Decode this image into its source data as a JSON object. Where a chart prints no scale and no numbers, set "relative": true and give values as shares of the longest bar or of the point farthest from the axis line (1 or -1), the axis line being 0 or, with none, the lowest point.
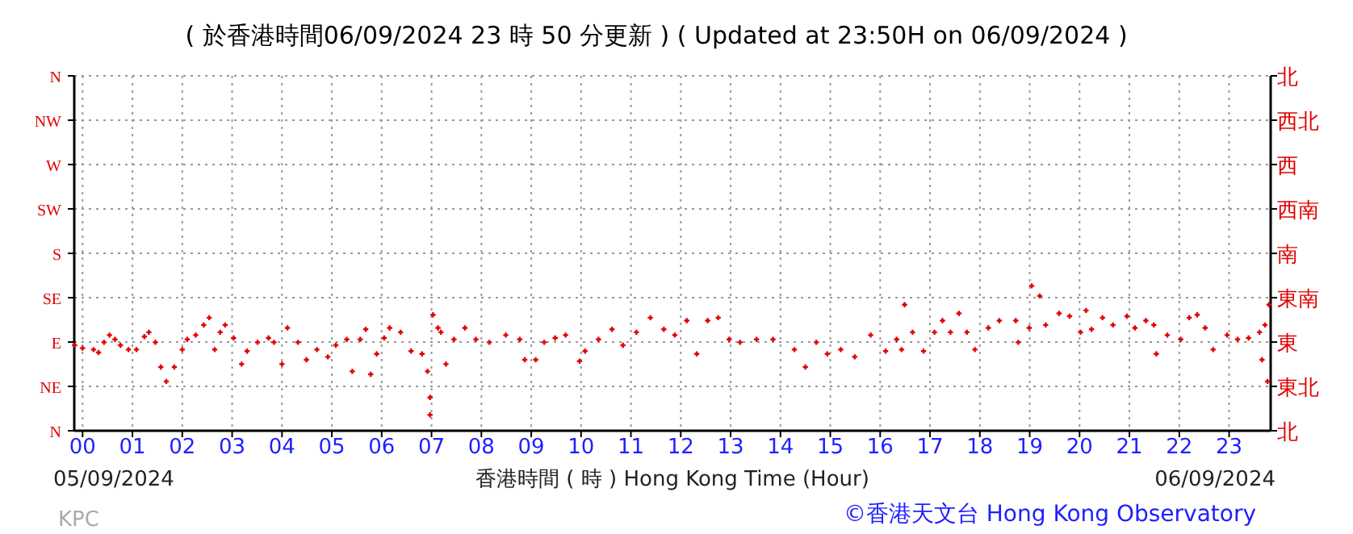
{
  "chart_data": {
    "type": "scatter",
    "title": "( 於香港時間06/09/2024 23 時 50 分更新 ) ( Updated at 23:50H on 06/09/2024 )",
    "xlabel": "香港時間 ( 時 ) Hong Kong Time (Hour)",
    "annotations": [
      "05/09/2024",
      "06/09/2024",
      "KPC",
      "©香港天文台 Hong Kong Observatory",
      "北",
      "東北",
      "東",
      "東南",
      "南",
      "西南",
      "西",
      "西北",
      "北"
    ],
    "marker": "cross",
    "grid": "x",
    "relative": true,
    "xlim": [
      -0.1667,
      23.8333
    ],
    "xticks": [
      {
        "value": 0,
        "label": "00"
      },
      {
        "value": 1,
        "label": "01"
      },
      {
        "value": 2,
        "label": "02"
      },
      {
        "value": 3,
        "label": "03"
      },
      {
        "value": 4,
        "label": "04"
      },
      {
        "value": 5,
        "label": "05"
      },
      {
        "value": 6,
        "label": "06"
      },
      {
        "value": 7,
        "label": "07"
      },
      {
        "value": 8,
        "label": "08"
      },
      {
        "value": 9,
        "label": "09"
      },
      10,
      11,
      12,
      13,
      14,
      15,
      16,
      17,
      18,
      19,
      20,
      21,
      22,
      23
    ],
    "ref_lines": [
      {
        "axis": "y",
        "value": 0,
        "label": "N"
      },
      {
        "axis": "y",
        "value": 0.306,
        "label": "NE",
        "color": "#999999",
        "line_style": "dotted"
      },
      {
        "axis": "y",
        "value": 0.612,
        "label": "E",
        "color": "#999999",
        "line_style": "dotted"
      },
      {
        "axis": "y",
        "value": 0.918,
        "label": "SE",
        "color": "#999999",
        "line_style": "dotted"
      },
      {
        "axis": "y",
        "value": 1.224,
        "label": "S",
        "color": "#999999",
        "line_style": "dotted"
      },
      {
        "axis": "y",
        "value": 1.531,
        "label": "SW",
        "color": "#999999",
        "line_style": "dotted"
      },
      {
        "axis": "y",
        "value": 1.837,
        "label": "W",
        "color": "#999999",
        "line_style": "dotted"
      },
      {
        "axis": "y",
        "value": 2.143,
        "label": "NW",
        "color": "#999999",
        "line_style": "dotted"
      },
      {
        "axis": "y",
        "value": 2.449,
        "label": "N",
        "color": "#999999",
        "line_style": "dotted"
      }
    ],
    "series": [
      {
        "color": "#e00000",
        "x": [
          -0.16,
          0,
          0.22,
          0.32,
          0.43,
          0.54,
          0.65,
          0.76,
          0.92,
          1.08,
          1.24,
          1.33,
          1.46,
          1.57,
          1.68,
          1.84,
          2.0,
          2.1,
          2.27,
          2.43,
          2.54,
          2.65,
          2.76,
          2.86,
          3.03,
          3.19,
          3.3,
          3.51,
          3.73,
          3.84,
          4.0,
          4.11,
          4.32,
          4.49,
          4.7,
          4.92,
          5.08,
          5.3,
          5.41,
          5.57,
          5.68,
          5.78,
          5.9,
          6.05,
          6.16,
          6.38,
          6.59,
          6.81,
          6.92,
          6.97,
          6.97,
          7.03,
          7.13,
          7.19,
          7.29,
          7.45,
          7.67,
          7.89,
          8.16,
          8.49,
          8.77,
          8.87,
          9.09,
          9.26,
          9.48,
          9.69,
          9.97,
          10.08,
          10.35,
          10.62,
          10.84,
          11.11,
          11.39,
          11.66,
          11.88,
          12.12,
          12.32,
          12.54,
          12.75,
          12.97,
          13.19,
          13.52,
          13.85,
          14.28,
          14.5,
          14.72,
          14.94,
          15.21,
          15.49,
          15.81,
          16.11,
          16.33,
          16.43,
          16.49,
          16.65,
          16.87,
          17.09,
          17.25,
          17.41,
          17.58,
          17.74,
          17.9,
          18.17,
          18.39,
          18.72,
          18.77,
          18.99,
          19.04,
          19.2,
          19.32,
          19.59,
          19.8,
          20.02,
          20.13,
          20.24,
          20.46,
          20.67,
          20.95,
          21.11,
          21.33,
          21.49,
          21.54,
          21.76,
          22.03,
          22.2,
          22.36,
          22.52,
          22.68,
          22.96,
          23.17,
          23.39,
          23.61,
          23.66,
          23.72,
          23.77,
          23.8
        ],
        "values": [
          0.59,
          0.57,
          0.56,
          0.54,
          0.61,
          0.66,
          0.63,
          0.59,
          0.56,
          0.56,
          0.65,
          0.68,
          0.61,
          0.44,
          0.34,
          0.44,
          0.56,
          0.63,
          0.66,
          0.73,
          0.78,
          0.56,
          0.68,
          0.73,
          0.64,
          0.46,
          0.55,
          0.61,
          0.64,
          0.61,
          0.46,
          0.71,
          0.61,
          0.49,
          0.56,
          0.51,
          0.59,
          0.63,
          0.41,
          0.63,
          0.7,
          0.39,
          0.53,
          0.64,
          0.71,
          0.68,
          0.55,
          0.53,
          0.41,
          0.23,
          0.11,
          0.8,
          0.71,
          0.68,
          0.46,
          0.63,
          0.71,
          0.63,
          0.61,
          0.66,
          0.63,
          0.49,
          0.49,
          0.61,
          0.64,
          0.66,
          0.48,
          0.55,
          0.63,
          0.7,
          0.59,
          0.68,
          0.78,
          0.7,
          0.66,
          0.76,
          0.53,
          0.76,
          0.78,
          0.63,
          0.61,
          0.63,
          0.63,
          0.56,
          0.44,
          0.61,
          0.53,
          0.56,
          0.51,
          0.66,
          0.55,
          0.63,
          0.56,
          0.87,
          0.68,
          0.55,
          0.68,
          0.76,
          0.68,
          0.81,
          0.68,
          0.56,
          0.71,
          0.76,
          0.76,
          0.61,
          0.71,
          1,
          0.93,
          0.73,
          0.81,
          0.79,
          0.68,
          0.83,
          0.7,
          0.78,
          0.73,
          0.79,
          0.71,
          0.76,
          0.73,
          0.53,
          0.66,
          0.63,
          0.78,
          0.8,
          0.71,
          0.56,
          0.66,
          0.63,
          0.64,
          0.68,
          0.49,
          0.73,
          0.34,
          0.87
        ]
      }
    ]
  }
}
